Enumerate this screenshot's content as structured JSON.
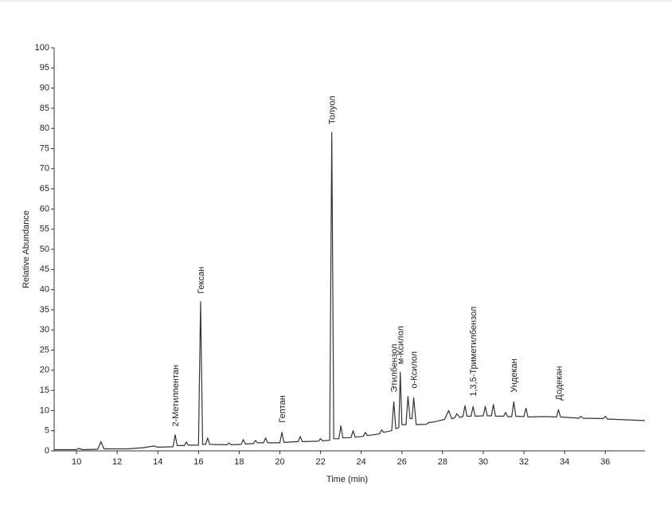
{
  "chart_data": {
    "type": "line",
    "x_label": "Time (min)",
    "y_label": "Relative Abundance",
    "x": [
      8.9,
      10.0,
      10.1,
      10.3,
      11.05,
      11.2,
      11.35,
      12.5,
      13.3,
      13.8,
      14.0,
      14.75,
      14.85,
      14.95,
      15.3,
      15.4,
      15.5,
      16.0,
      16.1,
      16.2,
      16.35,
      16.45,
      16.55,
      17.4,
      17.5,
      17.6,
      18.1,
      18.2,
      18.3,
      18.7,
      18.8,
      18.9,
      19.2,
      19.3,
      19.4,
      20.0,
      20.1,
      20.2,
      20.9,
      21.0,
      21.1,
      21.9,
      22.0,
      22.1,
      22.45,
      22.55,
      22.65,
      22.9,
      23.0,
      23.1,
      23.5,
      23.6,
      23.7,
      24.1,
      24.2,
      24.3,
      24.9,
      25.0,
      25.1,
      25.5,
      25.6,
      25.7,
      25.85,
      25.92,
      26.0,
      26.2,
      26.3,
      26.4,
      26.5,
      26.58,
      26.7,
      27.2,
      27.3,
      27.6,
      28.1,
      28.3,
      28.45,
      28.6,
      28.7,
      28.85,
      29.0,
      29.1,
      29.2,
      29.4,
      29.5,
      29.6,
      30.0,
      30.1,
      30.2,
      30.4,
      30.5,
      30.6,
      31.0,
      31.1,
      31.2,
      31.4,
      31.5,
      31.6,
      32.0,
      32.1,
      32.2,
      33.0,
      33.6,
      33.7,
      33.8,
      34.7,
      34.8,
      34.9,
      35.9,
      36.0,
      36.1,
      37.0,
      37.95
    ],
    "series": [
      {
        "color": "#333333",
        "values": [
          0.3,
          0.3,
          0.6,
          0.3,
          0.4,
          2.3,
          0.5,
          0.5,
          0.8,
          1.2,
          0.9,
          1.0,
          4.0,
          1.3,
          1.3,
          2.2,
          1.4,
          1.4,
          37,
          1.6,
          1.6,
          3.2,
          1.6,
          1.5,
          2.0,
          1.5,
          1.6,
          2.8,
          1.7,
          1.8,
          2.6,
          2.0,
          2.0,
          3.2,
          2.0,
          2.0,
          4.6,
          2.1,
          2.3,
          3.6,
          2.3,
          2.4,
          3.0,
          2.5,
          2.6,
          79,
          3.0,
          3.0,
          6.2,
          3.2,
          3.3,
          5.0,
          3.4,
          3.6,
          4.6,
          3.8,
          4.2,
          5.2,
          4.6,
          5.0,
          12.2,
          5.5,
          5.8,
          19.5,
          6.5,
          6.5,
          13.5,
          8,
          8,
          13.2,
          6.5,
          6.6,
          7.0,
          7.2,
          7.8,
          10.0,
          8.0,
          8.2,
          9.2,
          8.3,
          8.5,
          11.2,
          8.6,
          8.6,
          11.0,
          8.6,
          8.7,
          11.0,
          8.7,
          8.7,
          11.5,
          8.6,
          8.6,
          9.5,
          8.5,
          8.5,
          12.2,
          8.6,
          8.5,
          10.6,
          8.4,
          8.5,
          8.4,
          10.2,
          8.4,
          8.1,
          8.6,
          8.1,
          8.0,
          8.6,
          7.9,
          7.7,
          7.5
        ]
      }
    ],
    "annotations": [
      {
        "text": "2-Метилпентан",
        "x": 14.85,
        "y": 6
      },
      {
        "text": "Гексан",
        "x": 16.1,
        "y": 39
      },
      {
        "text": "Гептан",
        "x": 20.1,
        "y": 7
      },
      {
        "text": "Толуол",
        "x": 22.55,
        "y": 81
      },
      {
        "text": "Этилбензол",
        "x": 25.6,
        "y": 14.5
      },
      {
        "text": "м-Ксилол",
        "x": 25.92,
        "y": 21.5
      },
      {
        "text": "о-Ксилол",
        "x": 26.58,
        "y": 15.5
      },
      {
        "text": "1,3,5-Триметилбензол",
        "x": 29.5,
        "y": 13.5
      },
      {
        "text": "Ундекан",
        "x": 31.5,
        "y": 14.5
      },
      {
        "text": "Додекан",
        "x": 33.7,
        "y": 12.5
      }
    ],
    "xlim": [
      8.9,
      37.95
    ],
    "ylim": [
      0,
      100
    ],
    "xticks": [
      10,
      12,
      14,
      16,
      18,
      20,
      22,
      24,
      26,
      28,
      30,
      32,
      34,
      36
    ],
    "yticks": [
      0,
      5,
      10,
      15,
      20,
      25,
      30,
      35,
      40,
      45,
      50,
      55,
      60,
      65,
      70,
      75,
      80,
      85,
      90,
      95,
      100
    ]
  }
}
